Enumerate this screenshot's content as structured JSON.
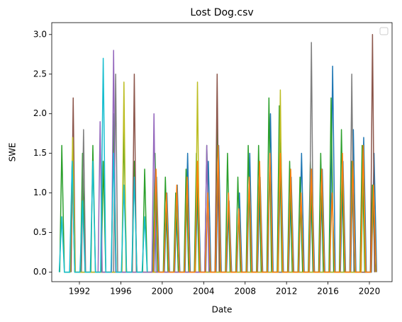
{
  "chart_data": {
    "type": "line",
    "title": "Lost Dog.csv",
    "x_label": "Date",
    "y_label": "SWE",
    "legend": "upper right",
    "xlim": [
      1989.33,
      2022.19
    ],
    "ylim": [
      -0.12,
      3.15
    ],
    "xticks": [
      1992,
      1996,
      2000,
      2004,
      2008,
      2012,
      2016,
      2020
    ],
    "yticks": [
      {
        "value": 0,
        "label": "0.0"
      },
      {
        "value": 0.5,
        "label": "0.5"
      },
      {
        "value": 1,
        "label": "1.0"
      },
      {
        "value": 1.5,
        "label": "1.5"
      },
      {
        "value": 2,
        "label": "2.0"
      },
      {
        "value": 2.5,
        "label": "2.5"
      },
      {
        "value": 3,
        "label": "3.0"
      }
    ],
    "series": [
      {
        "color": "#1f77b4",
        "x": [
          1999.2,
          1999.45,
          1999.7,
          2000.2,
          2000.45,
          2000.7,
          2001.2,
          2001.45,
          2001.7,
          2002.2,
          2002.45,
          2002.7,
          2003.2,
          2003.45,
          2003.7,
          2004.2,
          2004.45,
          2004.7,
          2005.2,
          2005.45,
          2005.7,
          2006.2,
          2006.45,
          2006.7,
          2007.2,
          2007.45,
          2007.7,
          2008.2,
          2008.45,
          2008.7,
          2009.2,
          2009.45,
          2009.7,
          2010.2,
          2010.45,
          2010.7,
          2011.2,
          2011.45,
          2011.7,
          2012.2,
          2012.45,
          2012.7,
          2013.2,
          2013.45,
          2013.7,
          2014.2,
          2014.45,
          2014.7,
          2015.2,
          2015.45,
          2015.7,
          2016.2,
          2016.45,
          2016.7,
          2017.2,
          2017.45,
          2017.7,
          2018.2,
          2018.45,
          2018.7,
          2019.2,
          2019.45,
          2019.7,
          2020.2,
          2020.45,
          2020.7
        ],
        "values": [
          0,
          1.2,
          0,
          0,
          1.0,
          0,
          0,
          1.1,
          0,
          0,
          1.5,
          0,
          0,
          1.3,
          0,
          0,
          1.4,
          0,
          0,
          1.6,
          0,
          0,
          0.9,
          0,
          0,
          1.0,
          0,
          0,
          1.5,
          0,
          0,
          1.2,
          0,
          0,
          2.0,
          0,
          0,
          1.6,
          0,
          0,
          1.2,
          0,
          0,
          1.5,
          0,
          0,
          1.3,
          0,
          0,
          1.3,
          0,
          0,
          2.6,
          0,
          0,
          1.4,
          0,
          0,
          1.8,
          0,
          0,
          1.7,
          0,
          0,
          1.5,
          0
        ]
      },
      {
        "color": "#2ca02c",
        "x": [
          1990.1,
          1990.3,
          1990.55,
          1991.1,
          1991.3,
          1991.55,
          1992.1,
          1992.3,
          1992.55,
          1993.1,
          1993.3,
          1993.55,
          1994.1,
          1994.3,
          1994.55,
          1995.1,
          1995.3,
          1995.55,
          1996.1,
          1996.3,
          1996.55,
          1997.1,
          1997.3,
          1997.55,
          1998.1,
          1998.3,
          1998.55,
          1999.1,
          1999.3,
          1999.55,
          2000.1,
          2000.3,
          2000.55,
          2001.1,
          2001.3,
          2001.55,
          2002.1,
          2002.3,
          2002.55,
          2003.1,
          2003.3,
          2003.55,
          2004.1,
          2004.3,
          2004.55,
          2005.1,
          2005.3,
          2005.55,
          2006.1,
          2006.3,
          2006.55,
          2007.1,
          2007.3,
          2007.55,
          2008.1,
          2008.3,
          2008.55,
          2009.1,
          2009.3,
          2009.55,
          2010.1,
          2010.3,
          2010.55,
          2011.1,
          2011.3,
          2011.55,
          2012.1,
          2012.3,
          2012.55,
          2013.1,
          2013.3,
          2013.55,
          2014.1,
          2014.3,
          2014.55,
          2015.1,
          2015.3,
          2015.55,
          2016.1,
          2016.3,
          2016.55,
          2017.1,
          2017.3,
          2017.55,
          2018.1,
          2018.3,
          2018.55,
          2019.1,
          2019.3,
          2019.55,
          2020.1,
          2020.3,
          2020.55
        ],
        "values": [
          0,
          1.6,
          0,
          0,
          1.4,
          0,
          0,
          1.5,
          0,
          0,
          1.6,
          0,
          0,
          1.4,
          0,
          0,
          2.0,
          0,
          0,
          1.8,
          0,
          0,
          1.4,
          0,
          0,
          1.3,
          0,
          0,
          1.5,
          0,
          0,
          1.2,
          0,
          0,
          1.0,
          0,
          0,
          1.3,
          0,
          0,
          1.5,
          0,
          0,
          1.6,
          0,
          0,
          1.9,
          0,
          0,
          1.5,
          0,
          0,
          1.2,
          0,
          0,
          1.6,
          0,
          0,
          1.6,
          0,
          0,
          2.2,
          0,
          0,
          2.1,
          0,
          0,
          1.4,
          0,
          0,
          1.2,
          0,
          0,
          1.4,
          0,
          0,
          1.5,
          0,
          0,
          2.2,
          0,
          0,
          1.8,
          0,
          0,
          1.4,
          0,
          0,
          1.6,
          0,
          0,
          1.1,
          0
        ]
      },
      {
        "color": "#8c564b",
        "x": [
          1991.2,
          1991.4,
          1991.6,
          1997.1,
          1997.3,
          1997.5,
          2005.1,
          2005.3,
          2005.5,
          2020.1,
          2020.3,
          2020.5
        ],
        "values": [
          0,
          2.2,
          0,
          0,
          2.5,
          0,
          0,
          2.5,
          0,
          0,
          3.0,
          0
        ]
      },
      {
        "color": "#7f7f7f",
        "x": [
          1992.2,
          1992.4,
          1992.6,
          1995.3,
          1995.5,
          1995.7,
          2014.2,
          2014.4,
          2014.6,
          2018.1,
          2018.3,
          2018.5
        ],
        "values": [
          0,
          1.8,
          0,
          0,
          2.5,
          0,
          0,
          2.9,
          0,
          0,
          2.5,
          0
        ]
      },
      {
        "color": "#bcbd22",
        "x": [
          1991.1,
          1991.35,
          1991.6,
          1996.1,
          1996.3,
          1996.5,
          2003.2,
          2003.4,
          2003.6,
          2011.2,
          2011.4,
          2011.6,
          2019.2,
          2019.4,
          2019.6
        ],
        "values": [
          0,
          1.7,
          0,
          0,
          2.4,
          0,
          0,
          2.4,
          0,
          0,
          2.3,
          0,
          0,
          1.6,
          0
        ]
      },
      {
        "color": "#9467bd",
        "x": [
          1993.8,
          1994.0,
          1994.2,
          1995.1,
          1995.3,
          1995.5,
          1999.0,
          1999.2,
          1999.4,
          2004.1,
          2004.3,
          2004.5
        ],
        "values": [
          0,
          1.9,
          0,
          0,
          2.8,
          0,
          0,
          2.0,
          0,
          0,
          1.6,
          0
        ]
      },
      {
        "color": "#ff7f0e",
        "x": [
          1999.15,
          1999.4,
          1999.65,
          2000.15,
          2000.4,
          2000.65,
          2001.15,
          2001.4,
          2001.65,
          2002.15,
          2002.4,
          2002.65,
          2003.15,
          2003.4,
          2003.65,
          2004.15,
          2004.4,
          2004.65,
          2005.15,
          2005.4,
          2005.65,
          2006.15,
          2006.4,
          2006.65,
          2007.15,
          2007.4,
          2007.65,
          2008.15,
          2008.4,
          2008.65,
          2009.15,
          2009.4,
          2009.65,
          2010.15,
          2010.4,
          2010.65,
          2011.15,
          2011.4,
          2011.65,
          2012.15,
          2012.4,
          2012.65,
          2013.15,
          2013.4,
          2013.65,
          2014.15,
          2014.4,
          2014.65,
          2015.15,
          2015.4,
          2015.65,
          2016.15,
          2016.4,
          2016.65,
          2017.15,
          2017.4,
          2017.65,
          2018.15,
          2018.4,
          2018.65,
          2019.15,
          2019.4,
          2019.65,
          2020.15,
          2020.4,
          2020.65
        ],
        "values": [
          0,
          1.3,
          0,
          0,
          1.0,
          0,
          0,
          1.1,
          0,
          0,
          1.2,
          0,
          0,
          1.4,
          0,
          0,
          1.0,
          0,
          0,
          1.6,
          0,
          0,
          1.0,
          0,
          0,
          0.8,
          0,
          0,
          1.2,
          0,
          0,
          1.4,
          0,
          0,
          1.5,
          0,
          0,
          1.5,
          0,
          0,
          1.3,
          0,
          0,
          1.0,
          0,
          0,
          1.3,
          0,
          0,
          1.3,
          0,
          0,
          1.0,
          0,
          0,
          1.5,
          0,
          0,
          1.4,
          0,
          0,
          1.6,
          0,
          0,
          1.1,
          0
        ]
      },
      {
        "color": "#17becf",
        "x": [
          1990.05,
          1990.3,
          1990.55,
          1991.05,
          1991.3,
          1991.55,
          1992.05,
          1992.3,
          1992.55,
          1993.05,
          1993.3,
          1993.55,
          1994.05,
          1994.3,
          1994.55,
          1995.05,
          1995.3,
          1995.55,
          1996.05,
          1996.3,
          1996.55,
          1997.05,
          1997.3,
          1997.55,
          1998.05,
          1998.3,
          1998.55
        ],
        "values": [
          0,
          0.7,
          0,
          0,
          1.4,
          0,
          0,
          0.9,
          0,
          0,
          1.4,
          0,
          0,
          2.7,
          0,
          0,
          1.5,
          0,
          0,
          1.1,
          0,
          0,
          1.2,
          0,
          0,
          0.7,
          0
        ]
      }
    ]
  }
}
